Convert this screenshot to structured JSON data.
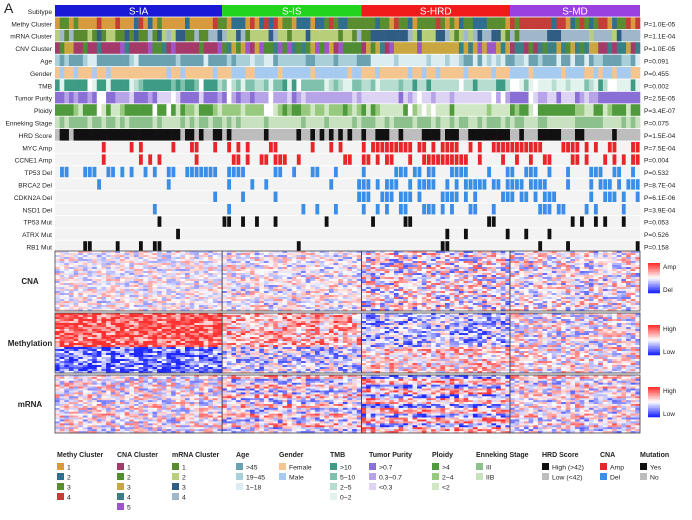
{
  "panel_label": "A",
  "subtypes": [
    {
      "name": "S-IA",
      "color": "#1a1ad6",
      "n": 36
    },
    {
      "name": "S-IS",
      "color": "#22d41e",
      "n": 30
    },
    {
      "name": "S-HRD",
      "color": "#f21b1b",
      "n": 32
    },
    {
      "name": "S-MD",
      "color": "#9a3fe0",
      "n": 28
    }
  ],
  "tracks": [
    {
      "label": "Subtype",
      "p": "",
      "type": "subtype"
    },
    {
      "label": "Methy Cluster",
      "p": "P=1.0E-05",
      "type": "cat",
      "palette": [
        "#d79b3e",
        "#2f6e8f",
        "#5a8d2f",
        "#c43d39"
      ]
    },
    {
      "label": "mRNA Cluster",
      "p": "P=1.1E-04",
      "type": "cat",
      "palette": [
        "#5a8a2e",
        "#b8cf7a",
        "#2f5d84",
        "#9fb7c9"
      ]
    },
    {
      "label": "CNV Cluster",
      "p": "P=1.0E-05",
      "type": "cat",
      "palette": [
        "#a33a6a",
        "#4f8d34",
        "#c9a640",
        "#3a7f86",
        "#9d55c7"
      ]
    },
    {
      "label": "Age",
      "p": "P=0.091",
      "type": "cat",
      "palette": [
        "#6aa2b2",
        "#a9cfd9",
        "#dcedf2"
      ]
    },
    {
      "label": "Gender",
      "p": "P=0.455",
      "type": "cat",
      "palette": [
        "#f5c58f",
        "#a7cbf0"
      ]
    },
    {
      "label": "TMB",
      "p": "P=0.002",
      "type": "cat",
      "palette": [
        "#3e9c85",
        "#7fc1ad",
        "#b7ddd1",
        "#e2f2ec"
      ]
    },
    {
      "label": "Tumor Purity",
      "p": "P=2.5E-05",
      "type": "cat",
      "palette": [
        "#8a6fd6",
        "#b7a4e8",
        "#ddd3f5"
      ]
    },
    {
      "label": "Ploidy",
      "p": "P=3.4E-07",
      "type": "cat",
      "palette": [
        "#4f9a3a",
        "#97c97f",
        "#cfe7c2"
      ]
    },
    {
      "label": "Enneking Stage",
      "p": "P=0.075",
      "type": "cat",
      "palette": [
        "#8cc08c",
        "#c8e2c0"
      ]
    },
    {
      "label": "HRD Score",
      "p": "P=1.5E-04",
      "type": "cat",
      "palette": [
        "#111111",
        "#bdbdbd"
      ]
    },
    {
      "label": "MYC Amp",
      "p": "P=7.5E-04",
      "type": "alt",
      "color": "#e8262a"
    },
    {
      "label": "CCNE1 Amp",
      "p": "P=0.004",
      "type": "alt",
      "color": "#e8262a"
    },
    {
      "label": "TP53 Del",
      "p": "P=0.532",
      "type": "alt",
      "color": "#3a8ee8"
    },
    {
      "label": "BRCA2 Del",
      "p": "P=8.7E-04",
      "type": "alt",
      "color": "#3a8ee8"
    },
    {
      "label": "CDKN2A Del",
      "p": "P=6.1E-06",
      "type": "alt",
      "color": "#3a8ee8"
    },
    {
      "label": "NSD1 Del",
      "p": "P=3.9E-04",
      "type": "alt",
      "color": "#3a8ee8"
    },
    {
      "label": "TP53 Mut",
      "p": "P=0.053",
      "type": "alt",
      "color": "#111111"
    },
    {
      "label": "ATRX Mut",
      "p": "P=0.526",
      "type": "alt",
      "color": "#111111"
    },
    {
      "label": "RB1 Mut",
      "p": "P=0.158",
      "type": "alt",
      "color": "#111111"
    }
  ],
  "heatmaps": [
    {
      "label": "CNA",
      "legend": [
        "Amp",
        "Del"
      ]
    },
    {
      "label": "Methylation",
      "legend": [
        "High",
        "Low"
      ]
    },
    {
      "label": "mRNA",
      "legend": [
        "High",
        "Low"
      ]
    }
  ],
  "legend": [
    {
      "title": "Methy Cluster",
      "items": [
        {
          "t": "1",
          "c": "#d79b3e"
        },
        {
          "t": "2",
          "c": "#2f6e8f"
        },
        {
          "t": "3",
          "c": "#5a8d2f"
        },
        {
          "t": "4",
          "c": "#c43d39"
        }
      ]
    },
    {
      "title": "CNA Cluster",
      "items": [
        {
          "t": "1",
          "c": "#a33a6a"
        },
        {
          "t": "2",
          "c": "#4f8d34"
        },
        {
          "t": "3",
          "c": "#c9a640"
        },
        {
          "t": "4",
          "c": "#3a7f86"
        },
        {
          "t": "5",
          "c": "#9d55c7"
        }
      ]
    },
    {
      "title": "mRNA Cluster",
      "items": [
        {
          "t": "1",
          "c": "#5a8a2e"
        },
        {
          "t": "2",
          "c": "#b8cf7a"
        },
        {
          "t": "3",
          "c": "#2f5d84"
        },
        {
          "t": "4",
          "c": "#9fb7c9"
        }
      ]
    },
    {
      "title": "Age",
      "items": [
        {
          "t": ">45",
          "c": "#6aa2b2"
        },
        {
          "t": "19~45",
          "c": "#a9cfd9"
        },
        {
          "t": "1~18",
          "c": "#dcedf2"
        }
      ]
    },
    {
      "title": "Gender",
      "items": [
        {
          "t": "Female",
          "c": "#f5c58f"
        },
        {
          "t": "Male",
          "c": "#a7cbf0"
        }
      ]
    },
    {
      "title": "TMB",
      "items": [
        {
          "t": ">10",
          "c": "#3e9c85"
        },
        {
          "t": "5~10",
          "c": "#7fc1ad"
        },
        {
          "t": "2~5",
          "c": "#b7ddd1"
        },
        {
          "t": "0~2",
          "c": "#e2f2ec"
        }
      ]
    },
    {
      "title": "Tumor Purity",
      "items": [
        {
          "t": ">0.7",
          "c": "#8a6fd6"
        },
        {
          "t": "0.3~0.7",
          "c": "#b7a4e8"
        },
        {
          "t": "<0.3",
          "c": "#ddd3f5"
        }
      ]
    },
    {
      "title": "Ploidy",
      "items": [
        {
          "t": ">4",
          "c": "#4f9a3a"
        },
        {
          "t": "2~4",
          "c": "#97c97f"
        },
        {
          "t": "<2",
          "c": "#cfe7c2"
        }
      ]
    },
    {
      "title": "Enneking Stage",
      "items": [
        {
          "t": "III",
          "c": "#8cc08c"
        },
        {
          "t": "IIB",
          "c": "#c8e2c0"
        }
      ]
    },
    {
      "title": "HRD Score",
      "items": [
        {
          "t": "High (>42)",
          "c": "#111111"
        },
        {
          "t": "Low (<42)",
          "c": "#bdbdbd"
        }
      ]
    },
    {
      "title": "CNA",
      "items": [
        {
          "t": "Amp",
          "c": "#e8262a"
        },
        {
          "t": "Del",
          "c": "#3a8ee8"
        }
      ]
    },
    {
      "title": "Mutation",
      "items": [
        {
          "t": "Yes",
          "c": "#111111"
        },
        {
          "t": "No",
          "c": "#bdbdbd"
        }
      ]
    }
  ]
}
